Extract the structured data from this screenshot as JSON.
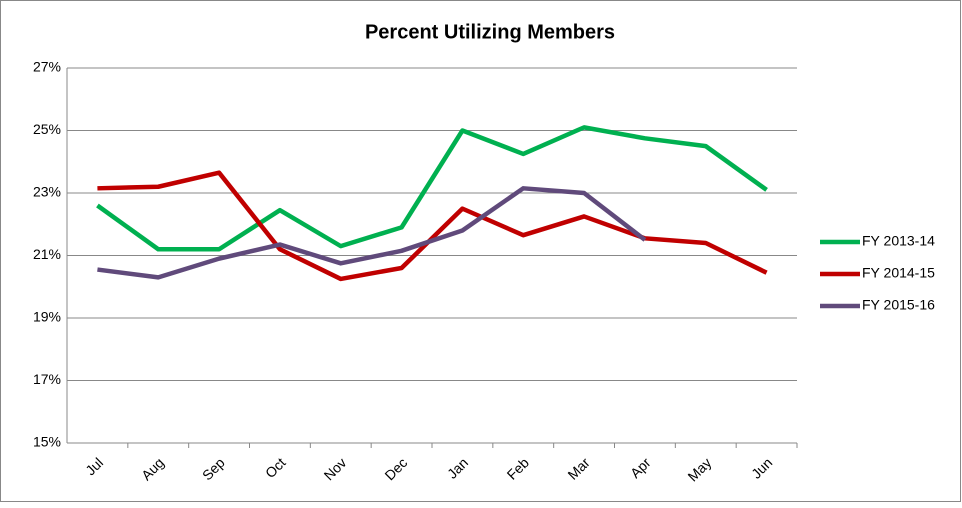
{
  "chart_data": {
    "type": "line",
    "title": "Percent Utilizing Members",
    "categories": [
      "Jul",
      "Aug",
      "Sep",
      "Oct",
      "Nov",
      "Dec",
      "Jan",
      "Feb",
      "Mar",
      "Apr",
      "May",
      "Jun"
    ],
    "series": [
      {
        "name": "FY 2013-14",
        "color": "#00b050",
        "values": [
          22.6,
          21.2,
          21.2,
          22.45,
          21.3,
          21.9,
          25.0,
          24.25,
          25.1,
          24.75,
          24.5,
          23.1
        ]
      },
      {
        "name": "FY 2014-15",
        "color": "#c00000",
        "values": [
          23.15,
          23.2,
          23.65,
          21.2,
          20.25,
          20.6,
          22.5,
          21.65,
          22.25,
          21.55,
          21.4,
          20.45
        ]
      },
      {
        "name": "FY 2015-16",
        "color": "#604a7b",
        "values": [
          20.55,
          20.3,
          20.9,
          21.35,
          20.75,
          21.15,
          21.8,
          23.15,
          23.0,
          21.5,
          null,
          null
        ]
      }
    ],
    "ylim": [
      15,
      27
    ],
    "yticks": [
      {
        "value": 15,
        "label": "15%"
      },
      {
        "value": 17,
        "label": "17%"
      },
      {
        "value": 19,
        "label": "19%"
      },
      {
        "value": 21,
        "label": "21%"
      },
      {
        "value": 23,
        "label": "23%"
      },
      {
        "value": 25,
        "label": "25%"
      },
      {
        "value": 27,
        "label": "27%"
      }
    ],
    "grid": true,
    "legend": "right"
  }
}
